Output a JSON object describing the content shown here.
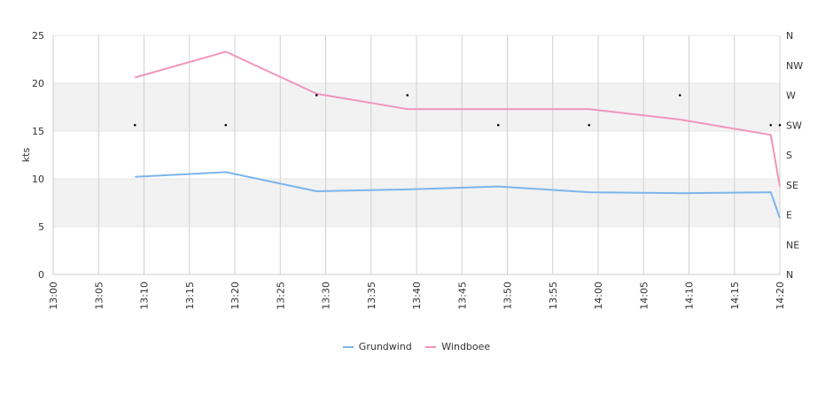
{
  "chart_data": {
    "type": "line",
    "title": "",
    "xlabel": "",
    "ylabel": "kts",
    "ylim": [
      0,
      25
    ],
    "yticks": [
      0,
      5,
      10,
      15,
      20,
      25
    ],
    "xlim": [
      "13:00",
      "14:20"
    ],
    "xticks": [
      "13:00",
      "13:05",
      "13:10",
      "13:15",
      "13:20",
      "13:25",
      "13:30",
      "13:35",
      "13:40",
      "13:45",
      "13:50",
      "13:55",
      "14:00",
      "14:05",
      "14:10",
      "14:15",
      "14:20"
    ],
    "y2ticks": [
      "N",
      "NE",
      "E",
      "SE",
      "S",
      "SW",
      "W",
      "NW",
      "N"
    ],
    "grid": true,
    "banded_y": true,
    "legend": "bottom-center",
    "series": [
      {
        "name": "Grundwind",
        "color": "#7cb5ec",
        "x": [
          "13:09",
          "13:19",
          "13:29",
          "13:39",
          "13:49",
          "13:59",
          "14:09",
          "14:19",
          "14:20"
        ],
        "values": [
          10.2,
          10.7,
          8.7,
          8.9,
          9.2,
          8.6,
          8.5,
          8.6,
          5.9
        ]
      },
      {
        "name": "Windboee",
        "color": "#f094bc",
        "x": [
          "13:09",
          "13:19",
          "13:29",
          "13:39",
          "13:49",
          "13:59",
          "14:09",
          "14:19",
          "14:20"
        ],
        "values": [
          20.6,
          23.3,
          18.9,
          17.3,
          17.3,
          17.3,
          16.2,
          14.6,
          9.2
        ]
      }
    ],
    "direction_markers": {
      "x": [
        "13:09",
        "13:19",
        "13:29",
        "13:39",
        "13:49",
        "13:59",
        "14:09",
        "14:19",
        "14:20"
      ],
      "values": [
        "SW",
        "SW",
        "W",
        "W",
        "SW",
        "SW",
        "W",
        "SW",
        "SW"
      ]
    }
  }
}
